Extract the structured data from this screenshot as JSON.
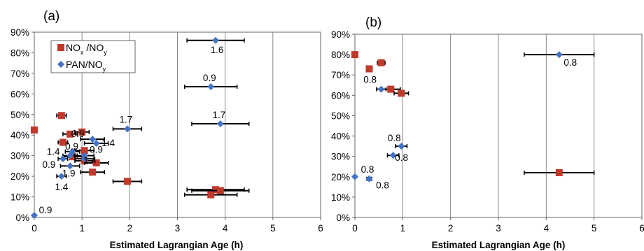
{
  "chart_data": [
    {
      "type": "scatter",
      "panel_label": "(a)",
      "xlabel": "Estimated Lagrangian Age (h)",
      "ylabel": "",
      "xlim": [
        0,
        6
      ],
      "ylim": [
        0,
        90
      ],
      "x_ticks": [
        "0",
        "1",
        "2",
        "3",
        "4",
        "5",
        "6"
      ],
      "y_ticks": [
        "0%",
        "10%",
        "20%",
        "30%",
        "40%",
        "50%",
        "60%",
        "70%",
        "80%",
        "90%"
      ],
      "grid": "vertical gridlines",
      "legend": {
        "placement": "top-left",
        "entries": [
          {
            "marker": "square",
            "color": "#c0392b",
            "base": "NO",
            "sub1": "x",
            "mid": " /NO",
            "sub2": "y"
          },
          {
            "marker": "diamond",
            "color": "#4472c4",
            "text": "PAN/NO",
            "sub": "y"
          }
        ]
      },
      "series": [
        {
          "marker": "square",
          "color": "#c0392b",
          "points": [
            {
              "x": 0.0,
              "y": 42.5,
              "xerr": 0.0
            },
            {
              "x": 0.57,
              "y": 49.5,
              "xerr": 0.1
            },
            {
              "x": 0.6,
              "y": 36.5,
              "xerr": 0.1
            },
            {
              "x": 0.75,
              "y": 40.5,
              "xerr": 0.15
            },
            {
              "x": 1.0,
              "y": 41.5,
              "xerr": 0.15
            },
            {
              "x": 0.8,
              "y": 29.5,
              "xerr": 0.2
            },
            {
              "x": 1.05,
              "y": 32.5,
              "xerr": 0.2
            },
            {
              "x": 1.05,
              "y": 27.5,
              "xerr": 0.2
            },
            {
              "x": 1.3,
              "y": 26.5,
              "xerr": 0.25
            },
            {
              "x": 1.22,
              "y": 22.0,
              "xerr": 0.25
            },
            {
              "x": 1.95,
              "y": 17.5,
              "xerr": 0.3
            },
            {
              "x": 3.8,
              "y": 13.5,
              "xerr": 0.6
            },
            {
              "x": 3.9,
              "y": 13.0,
              "xerr": 0.6
            },
            {
              "x": 3.7,
              "y": 11.0,
              "xerr": 0.55
            }
          ]
        },
        {
          "marker": "diamond",
          "color": "#4472c4",
          "points": [
            {
              "x": 3.8,
              "y": 86.0,
              "xerr": 0.6,
              "label": "1.6",
              "ldx": 2,
              "ldy": 18
            },
            {
              "x": 3.7,
              "y": 63.5,
              "xerr": 0.55,
              "label": "0.9",
              "ldx": -2,
              "ldy": -8
            },
            {
              "x": 3.9,
              "y": 45.5,
              "xerr": 0.6,
              "label": "1.7",
              "ldx": -2,
              "ldy": -8
            },
            {
              "x": 1.95,
              "y": 43.0,
              "xerr": 0.3,
              "label": "1.7",
              "ldx": -2,
              "ldy": -9
            },
            {
              "x": 1.22,
              "y": 38.0,
              "xerr": 0.25,
              "label": "0.9",
              "ldx": -21,
              "ldy": -3
            },
            {
              "x": 1.3,
              "y": 36.0,
              "xerr": 0.25,
              "label": "1.4",
              "ldx": 17,
              "ldy": 4
            },
            {
              "x": 0.8,
              "y": 32.0,
              "xerr": 0.15,
              "label": "0.9",
              "ldx": -1,
              "ldy": -3
            },
            {
              "x": 1.05,
              "y": 30.0,
              "xerr": 0.2,
              "label": "0.9",
              "ldx": 17,
              "ldy": -4
            },
            {
              "x": 0.75,
              "y": 30.0,
              "xerr": 0.15,
              "label": "1.4",
              "ldx": -24,
              "ldy": -1
            },
            {
              "x": 1.05,
              "y": 28.5,
              "xerr": 0.2,
              "label": "1.4",
              "ldx": 8,
              "ldy": 7
            },
            {
              "x": 0.6,
              "y": 28.5,
              "xerr": 0.1,
              "label": "0.9",
              "ldx": -20,
              "ldy": 13
            },
            {
              "x": 0.75,
              "y": 25.0,
              "xerr": 0.2,
              "label": "1.9",
              "ldx": -2,
              "ldy": 15
            },
            {
              "x": 0.57,
              "y": 20.0,
              "xerr": 0.1,
              "label": "1.4",
              "ldx": 0,
              "ldy": 20
            },
            {
              "x": 0.0,
              "y": 1.0,
              "xerr": 0.0,
              "label": "0.9",
              "ldx": 16,
              "ldy": -3
            }
          ]
        }
      ]
    },
    {
      "type": "scatter",
      "panel_label": "(b)",
      "xlabel": "Estimated Lagrangian Age (h)",
      "ylabel": "",
      "xlim": [
        0,
        6
      ],
      "ylim": [
        0,
        90
      ],
      "x_ticks": [
        "0",
        "1",
        "2",
        "3",
        "4",
        "5",
        "6"
      ],
      "y_ticks": [
        "0%",
        "10%",
        "20%",
        "30%",
        "40%",
        "50%",
        "60%",
        "70%",
        "80%",
        "90%"
      ],
      "grid": "vertical gridlines",
      "series": [
        {
          "marker": "square",
          "color": "#c0392b",
          "points": [
            {
              "x": 0.0,
              "y": 80.0,
              "xerr": 0.0
            },
            {
              "x": 0.55,
              "y": 76.0,
              "xerr": 0.08
            },
            {
              "x": 0.3,
              "y": 73.0,
              "xerr": 0.05
            },
            {
              "x": 0.75,
              "y": 63.0,
              "xerr": 0.2
            },
            {
              "x": 0.97,
              "y": 61.0,
              "xerr": 0.15
            },
            {
              "x": 4.27,
              "y": 22.0,
              "xerr": 0.73
            }
          ]
        },
        {
          "marker": "diamond",
          "color": "#4472c4",
          "points": [
            {
              "x": 4.27,
              "y": 80.0,
              "xerr": 0.73,
              "label": "0.8",
              "ldx": 16,
              "ldy": 16
            },
            {
              "x": 0.55,
              "y": 63.0,
              "xerr": 0.1,
              "label": "0.8",
              "ldx": -16,
              "ldy": -9
            },
            {
              "x": 0.97,
              "y": 35.0,
              "xerr": 0.12,
              "label": "0.8",
              "ldx": -10,
              "ldy": -7
            },
            {
              "x": 0.8,
              "y": 30.5,
              "xerr": 0.12,
              "label": "0.8",
              "ldx": 12,
              "ldy": 8
            },
            {
              "x": 0.0,
              "y": 20.0,
              "xerr": 0.0,
              "label": "0.8",
              "ldx": 18,
              "ldy": -6
            },
            {
              "x": 0.3,
              "y": 19.0,
              "xerr": 0.05,
              "label": "0.8",
              "ldx": 19,
              "ldy": 14
            }
          ]
        }
      ]
    }
  ]
}
